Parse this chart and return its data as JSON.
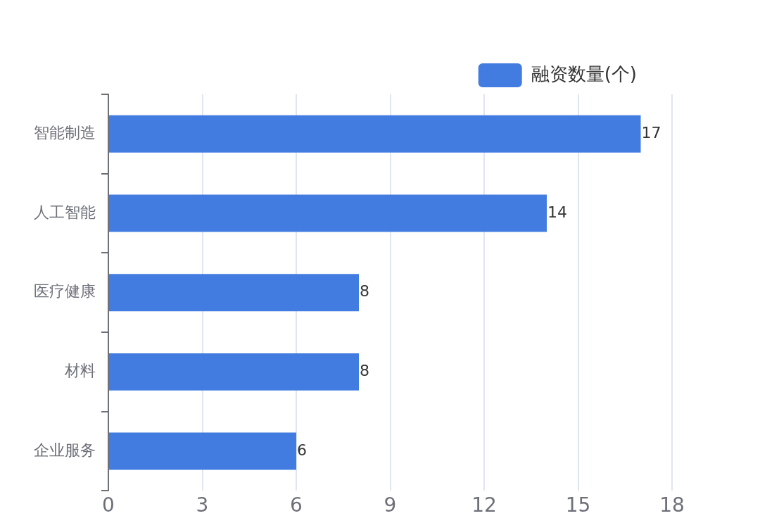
{
  "chart_data": {
    "type": "bar",
    "orientation": "horizontal",
    "categories": [
      "智能制造",
      "人工智能",
      "医疗健康",
      "材料",
      "企业服务"
    ],
    "series": [
      {
        "name": "融资数量(个)",
        "color": "#437ce0",
        "values": [
          17,
          14,
          8,
          8,
          6
        ]
      }
    ],
    "xlim": [
      0,
      18
    ],
    "xticks": [
      0,
      3,
      6,
      9,
      12,
      15,
      18
    ],
    "grid": "x",
    "legend": "top right",
    "data_labels": true
  }
}
